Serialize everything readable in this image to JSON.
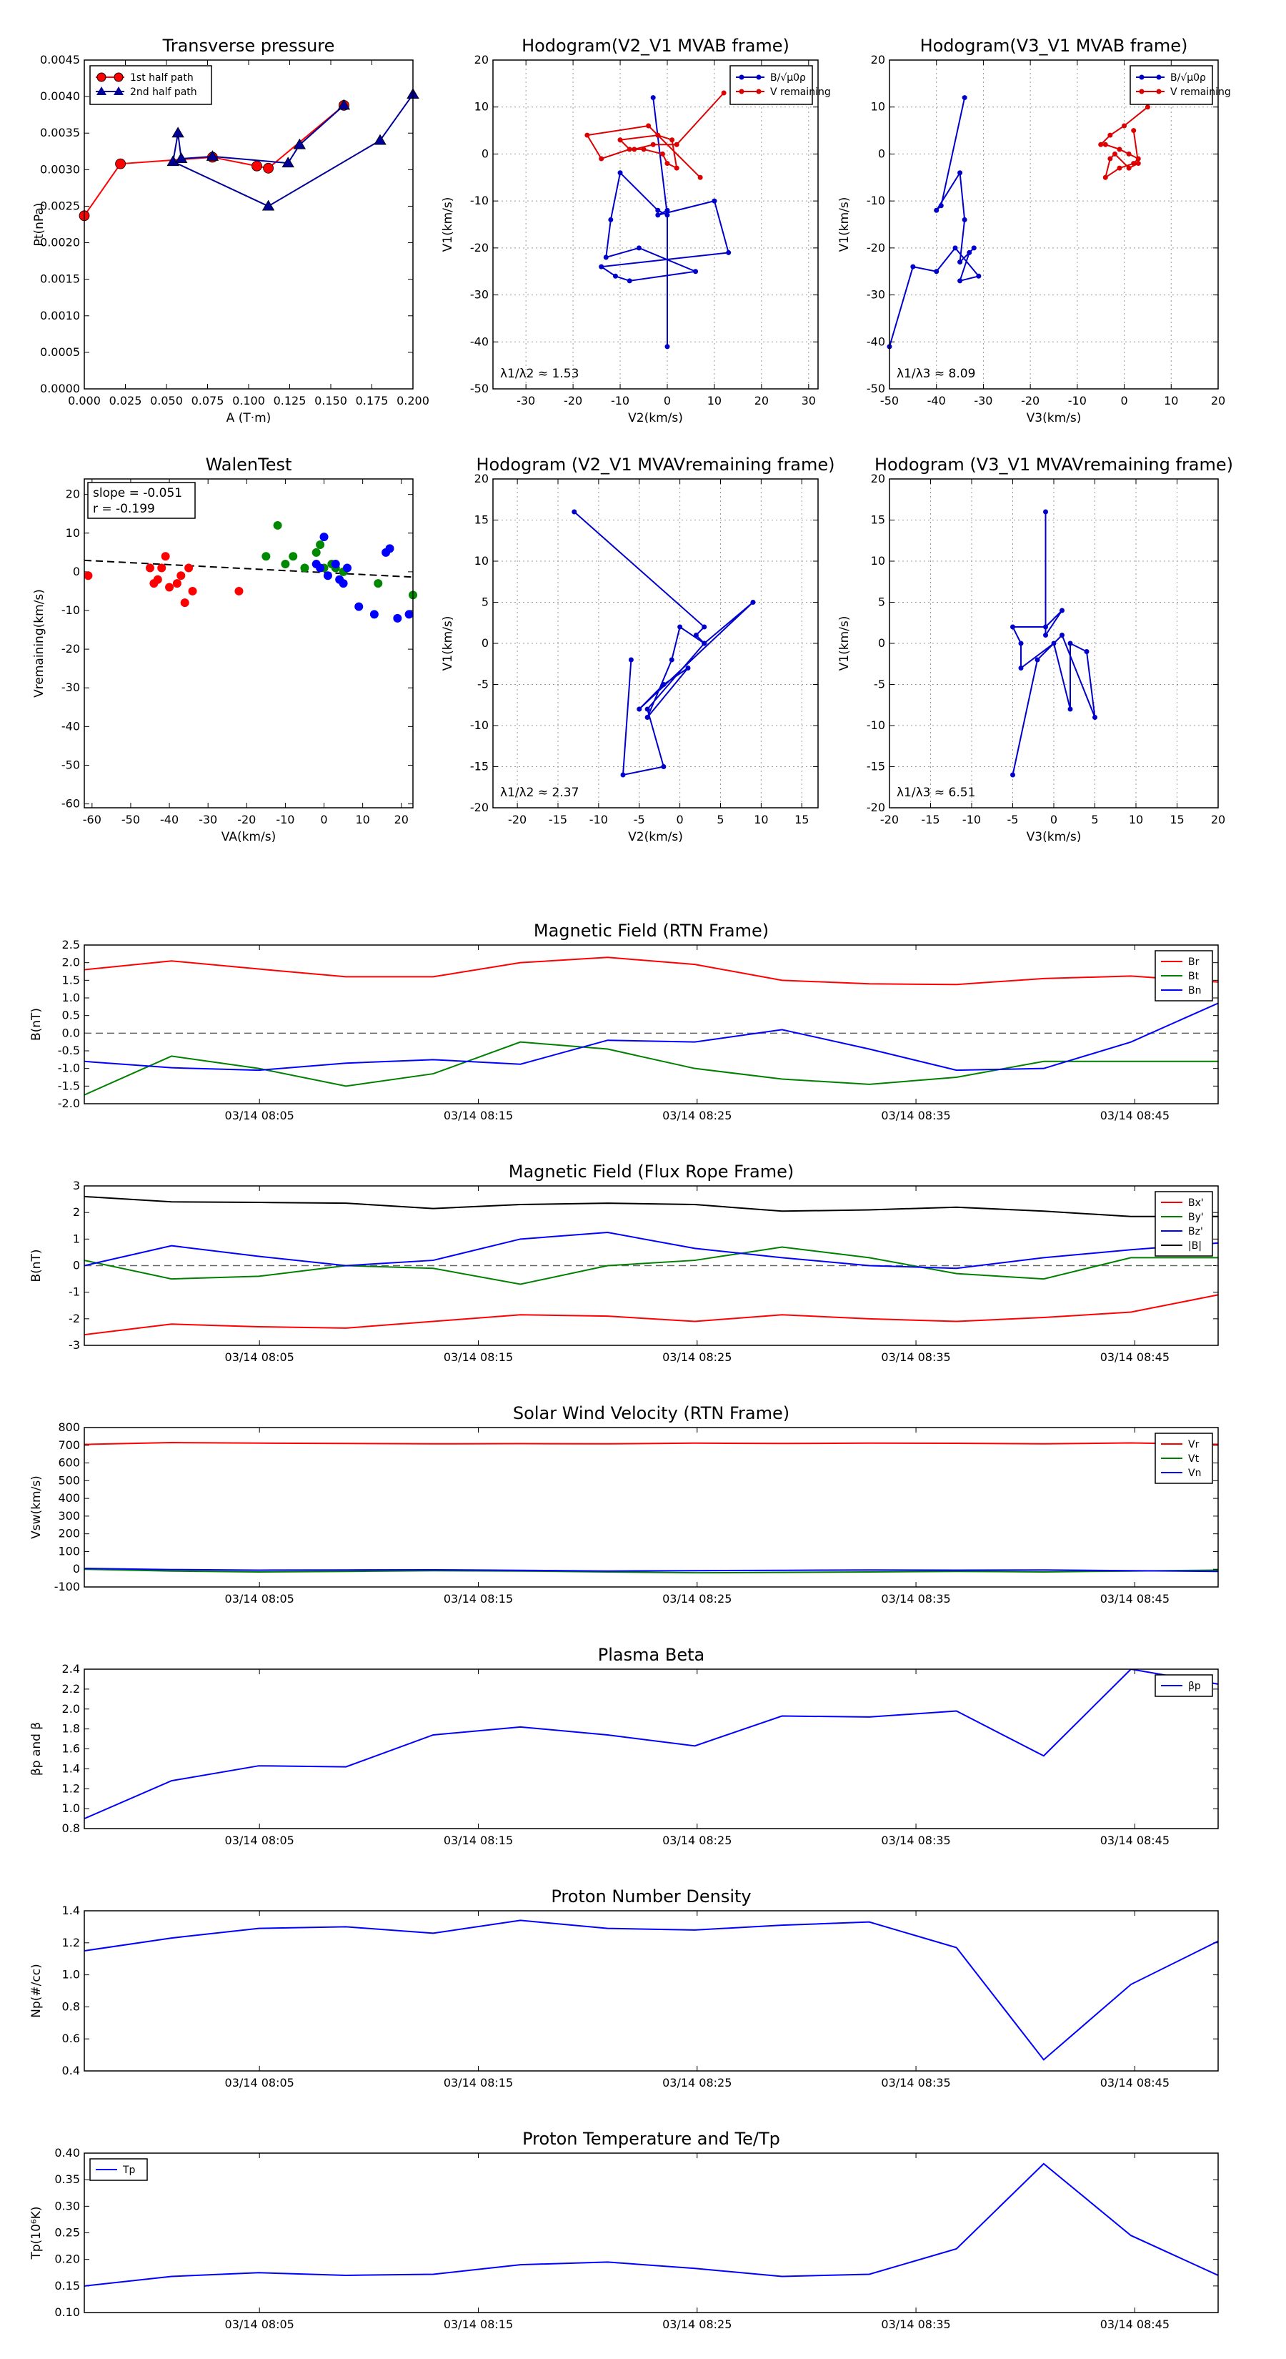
{
  "chart_data": [
    {
      "id": "tp",
      "type": "line",
      "title": "Transverse pressure",
      "xlabel": "A (T·m)",
      "ylabel": "Pt(nPa)",
      "xlim": [
        0,
        0.2
      ],
      "ylim": [
        0,
        0.0045
      ],
      "xticks": [
        "0.000",
        "0.025",
        "0.050",
        "0.075",
        "0.100",
        "0.125",
        "0.150",
        "0.175",
        "0.200"
      ],
      "yticks": [
        "0.0000",
        "0.0005",
        "0.0010",
        "0.0015",
        "0.0020",
        "0.0025",
        "0.0030",
        "0.0035",
        "0.0040",
        "0.0045"
      ],
      "legend": [
        "1st half path",
        "2nd half path"
      ],
      "series": [
        {
          "name": "1st half path",
          "color": "#ff0000",
          "marker": "circle",
          "x": [
            0.0,
            0.022,
            0.078,
            0.105,
            0.112,
            0.158
          ],
          "y": [
            0.00237,
            0.00308,
            0.00317,
            0.00305,
            0.00302,
            0.00388
          ]
        },
        {
          "name": "2nd half path",
          "color": "#000099",
          "marker": "triangle",
          "x": [
            0.2,
            0.18,
            0.112,
            0.054,
            0.057,
            0.059,
            0.078,
            0.124,
            0.131,
            0.158
          ],
          "y": [
            0.00403,
            0.0034,
            0.0025,
            0.00311,
            0.0035,
            0.00315,
            0.00318,
            0.00309,
            0.00334,
            0.00388
          ]
        }
      ]
    },
    {
      "id": "hodo1",
      "type": "line",
      "title": "Hodogram(V2_V1 MVAB frame)",
      "xlabel": "V2(km/s)",
      "ylabel": "V1(km/s)",
      "xlim": [
        -37,
        32
      ],
      "ylim": [
        -50,
        20
      ],
      "xticks": [
        "-30",
        "-20",
        "-10",
        "0",
        "10",
        "20",
        "30"
      ],
      "yticks": [
        "-50",
        "-40",
        "-30",
        "-20",
        "-10",
        "0",
        "10",
        "20"
      ],
      "legend": [
        "B/√μ0ρ",
        "V remaining"
      ],
      "annotation": "λ1/λ2 ≈ 1.53",
      "series": [
        {
          "name": "B",
          "color": "#0000cc",
          "x": [
            -3,
            0,
            -2,
            -10,
            -12,
            -13,
            -6,
            6,
            -8,
            -11,
            -14,
            13,
            10,
            -2,
            0,
            0
          ],
          "y": [
            12,
            -13,
            -12,
            -4,
            -14,
            -22,
            -20,
            -25,
            -27,
            -26,
            -24,
            -21,
            -10,
            -13,
            -12,
            -41
          ]
        },
        {
          "name": "V",
          "color": "#dd0000",
          "x": [
            12,
            2,
            -3,
            -7,
            -5,
            -1,
            0,
            2,
            1,
            -2,
            -10,
            -8,
            -14,
            -17,
            -4,
            7
          ],
          "y": [
            13,
            2,
            2,
            1,
            1,
            0,
            -2,
            -3,
            3,
            4,
            3,
            1,
            -1,
            4,
            6,
            -5
          ]
        }
      ]
    },
    {
      "id": "hodo2",
      "type": "line",
      "title": "Hodogram(V3_V1 MVAB frame)",
      "xlabel": "V3(km/s)",
      "ylabel": "V1(km/s)",
      "xlim": [
        -50,
        20
      ],
      "ylim": [
        -50,
        20
      ],
      "xticks": [
        "-50",
        "-40",
        "-30",
        "-20",
        "-10",
        "0",
        "10",
        "20"
      ],
      "yticks": [
        "-50",
        "-40",
        "-30",
        "-20",
        "-10",
        "0",
        "10",
        "20"
      ],
      "legend": [
        "B/√μ0ρ",
        "V remaining"
      ],
      "annotation": "λ1/λ3 ≈ 8.09",
      "series": [
        {
          "name": "B",
          "color": "#0000cc",
          "x": [
            -34,
            -39,
            -40,
            -35,
            -34,
            -35,
            -32,
            -33,
            -35,
            -31,
            -36,
            -40,
            -45,
            -50
          ],
          "y": [
            12,
            -11,
            -12,
            -4,
            -14,
            -23,
            -20,
            -21,
            -27,
            -26,
            -20,
            -25,
            -24,
            -41
          ]
        },
        {
          "name": "V",
          "color": "#dd0000",
          "x": [
            5,
            0,
            -3,
            -5,
            -4,
            -1,
            1,
            3,
            2,
            -1,
            -4,
            -3,
            -2,
            1,
            3,
            2
          ],
          "y": [
            10,
            6,
            4,
            2,
            2,
            1,
            0,
            -1,
            -2,
            -3,
            -5,
            -1,
            0,
            -3,
            -2,
            5
          ]
        }
      ]
    },
    {
      "id": "walen",
      "type": "scatter",
      "title": "WalenTest",
      "xlabel": "VA(km/s)",
      "ylabel": "Vremaining(km/s)",
      "xlim": [
        -62,
        23
      ],
      "ylim": [
        -61,
        24
      ],
      "xticks": [
        "-60",
        "-50",
        "-40",
        "-30",
        "-20",
        "-10",
        "0",
        "10",
        "20"
      ],
      "yticks": [
        "-60",
        "-50",
        "-40",
        "-30",
        "-20",
        "-10",
        "0",
        "10",
        "20"
      ],
      "box_lines": [
        "slope = -0.051",
        "r = -0.199"
      ],
      "fit": {
        "slope": -0.051,
        "intercept": -0.2
      },
      "series": [
        {
          "name": "red",
          "color": "#ff0000",
          "x": [
            -61,
            -45,
            -44,
            -43,
            -42,
            -41,
            -40,
            -38,
            -37,
            -36,
            -35,
            -34,
            -22
          ],
          "y": [
            -1,
            1,
            -3,
            -2,
            1,
            4,
            -4,
            -3,
            -1,
            -8,
            1,
            -5,
            -5
          ]
        },
        {
          "name": "green",
          "color": "#008800",
          "x": [
            -15,
            -12,
            -10,
            -8,
            -5,
            -2,
            -1,
            0,
            2,
            3,
            5,
            14,
            23
          ],
          "y": [
            4,
            12,
            2,
            4,
            1,
            5,
            7,
            1,
            2,
            1,
            0,
            -3,
            -6
          ]
        },
        {
          "name": "blue",
          "color": "#0000ff",
          "x": [
            -2,
            -1,
            0,
            1,
            3,
            4,
            5,
            6,
            9,
            13,
            16,
            17,
            19,
            22
          ],
          "y": [
            2,
            1,
            9,
            -1,
            2,
            -2,
            -3,
            1,
            -9,
            -11,
            5,
            6,
            -12,
            -11
          ]
        }
      ]
    },
    {
      "id": "hodo3",
      "type": "line",
      "title": "Hodogram (V2_V1 MVAVremaining frame)",
      "xlabel": "V2(km/s)",
      "ylabel": "V1(km/s)",
      "xlim": [
        -23,
        17
      ],
      "ylim": [
        -20,
        20
      ],
      "xticks": [
        "-20",
        "-15",
        "-10",
        "-5",
        "0",
        "5",
        "10",
        "15"
      ],
      "yticks": [
        "-20",
        "-15",
        "-10",
        "-5",
        "0",
        "5",
        "10",
        "15",
        "20"
      ],
      "annotation": "λ1/λ2 ≈ 2.37",
      "series": [
        {
          "name": "V",
          "color": "#0000cc",
          "x": [
            -13,
            3,
            2,
            3,
            9,
            -5,
            -2,
            1,
            -4,
            -1,
            0,
            3,
            -4,
            -2,
            -7,
            -6
          ],
          "y": [
            16,
            2,
            1,
            0,
            5,
            -8,
            -5,
            -3,
            -9,
            -2,
            2,
            0,
            -8,
            -15,
            -16,
            -2
          ]
        }
      ]
    },
    {
      "id": "hodo4",
      "type": "line",
      "title": "Hodogram (V3_V1 MVAVremaining frame)",
      "xlabel": "V3(km/s)",
      "ylabel": "V1(km/s)",
      "xlim": [
        -20,
        20
      ],
      "ylim": [
        -20,
        20
      ],
      "xticks": [
        "-20",
        "-15",
        "-10",
        "-5",
        "0",
        "5",
        "10",
        "15",
        "20"
      ],
      "yticks": [
        "-20",
        "-15",
        "-10",
        "-5",
        "0",
        "5",
        "10",
        "15",
        "20"
      ],
      "annotation": "λ1/λ3 ≈ 6.51",
      "series": [
        {
          "name": "V",
          "color": "#0000cc",
          "x": [
            -1,
            -1,
            1,
            -1,
            -5,
            -4,
            -4,
            0,
            2,
            2,
            4,
            5,
            1,
            -2,
            -5
          ],
          "y": [
            16,
            1,
            4,
            2,
            2,
            0,
            -3,
            0,
            -8,
            0,
            -1,
            -9,
            1,
            -2,
            -16
          ]
        }
      ]
    },
    {
      "id": "mag_rtn",
      "type": "line",
      "title": "Magnetic Field (RTN Frame)",
      "ylabel": "B(nT)",
      "ylim": [
        -2.0,
        2.5
      ],
      "yticks": [
        "2.5",
        "2.0",
        "1.5",
        "1.0",
        "0.5",
        "0.0",
        "-0.5",
        "-1.0",
        "-1.5",
        "-2.0"
      ],
      "xticks": [
        "03/14 08:05",
        "03/14 08:15",
        "03/14 08:25",
        "03/14 08:35",
        "03/14 08:45"
      ],
      "zero_line": true,
      "legend": [
        "Br",
        "Bt",
        "Bn"
      ],
      "series": [
        {
          "name": "Br",
          "color": "#ff0000",
          "values": [
            1.8,
            2.05,
            1.82,
            1.6,
            1.6,
            2.0,
            2.15,
            1.95,
            1.5,
            1.4,
            1.38,
            1.55,
            1.62,
            1.45
          ]
        },
        {
          "name": "Bt",
          "color": "#008000",
          "values": [
            -1.75,
            -0.65,
            -1.0,
            -1.5,
            -1.15,
            -0.25,
            -0.45,
            -1.0,
            -1.3,
            -1.45,
            -1.25,
            -0.8,
            -0.8,
            -0.8
          ]
        },
        {
          "name": "Bn",
          "color": "#0000ff",
          "values": [
            -0.8,
            -0.98,
            -1.05,
            -0.85,
            -0.75,
            -0.88,
            -0.2,
            -0.25,
            0.1,
            -0.45,
            -1.05,
            -1.0,
            -0.25,
            0.85
          ]
        }
      ]
    },
    {
      "id": "mag_fr",
      "type": "line",
      "title": "Magnetic Field (Flux Rope Frame)",
      "ylabel": "B(nT)",
      "ylim": [
        -3,
        3
      ],
      "yticks": [
        "3",
        "2",
        "1",
        "0",
        "-1",
        "-2",
        "-3"
      ],
      "xticks": [
        "03/14 08:05",
        "03/14 08:15",
        "03/14 08:25",
        "03/14 08:35",
        "03/14 08:45"
      ],
      "zero_line": true,
      "legend": [
        "Bx'",
        "By'",
        "Bz'",
        "|B|"
      ],
      "series": [
        {
          "name": "Bx'",
          "color": "#ff0000",
          "values": [
            -2.6,
            -2.2,
            -2.3,
            -2.35,
            -2.1,
            -1.85,
            -1.9,
            -2.1,
            -1.85,
            -2.0,
            -2.1,
            -1.95,
            -1.75,
            -1.1
          ]
        },
        {
          "name": "By'",
          "color": "#008000",
          "values": [
            0.2,
            -0.5,
            -0.4,
            0.0,
            -0.1,
            -0.7,
            0.0,
            0.2,
            0.7,
            0.3,
            -0.3,
            -0.5,
            0.3,
            0.3
          ]
        },
        {
          "name": "Bz'",
          "color": "#0000ff",
          "values": [
            0.0,
            0.75,
            0.35,
            0.0,
            0.2,
            1.0,
            1.25,
            0.65,
            0.3,
            0.0,
            -0.1,
            0.3,
            0.6,
            0.85
          ]
        },
        {
          "name": "|B|",
          "color": "#000000",
          "values": [
            2.6,
            2.4,
            2.38,
            2.35,
            2.15,
            2.3,
            2.35,
            2.3,
            2.05,
            2.1,
            2.2,
            2.05,
            1.85,
            1.85
          ]
        }
      ]
    },
    {
      "id": "sw",
      "type": "line",
      "title": "Solar Wind Velocity (RTN Frame)",
      "ylabel": "Vsw(km/s)",
      "ylim": [
        -100,
        800
      ],
      "yticks": [
        "800",
        "700",
        "600",
        "500",
        "400",
        "300",
        "200",
        "100",
        "0",
        "-100"
      ],
      "xticks": [
        "03/14 08:05",
        "03/14 08:15",
        "03/14 08:25",
        "03/14 08:35",
        "03/14 08:45"
      ],
      "legend": [
        "Vr",
        "Vt",
        "Vn"
      ],
      "series": [
        {
          "name": "Vr",
          "color": "#ff0000",
          "values": [
            705,
            715,
            712,
            710,
            708,
            709,
            708,
            712,
            710,
            712,
            711,
            708,
            713,
            705
          ]
        },
        {
          "name": "Vt",
          "color": "#008000",
          "values": [
            0,
            -10,
            -15,
            -12,
            -8,
            -10,
            -15,
            -20,
            -18,
            -15,
            -12,
            -15,
            -10,
            -5
          ]
        },
        {
          "name": "Vn",
          "color": "#0000ff",
          "values": [
            5,
            -2,
            -5,
            -4,
            -3,
            -6,
            -10,
            -8,
            -6,
            -4,
            -5,
            -4,
            -8,
            -12
          ]
        }
      ]
    },
    {
      "id": "beta",
      "type": "line",
      "title": "Plasma Beta",
      "ylabel": "βp and β",
      "ylim": [
        0.8,
        2.4
      ],
      "yticks": [
        "2.4",
        "2.2",
        "2.0",
        "1.8",
        "1.6",
        "1.4",
        "1.2",
        "1.0",
        "0.8"
      ],
      "xticks": [
        "03/14 08:05",
        "03/14 08:15",
        "03/14 08:25",
        "03/14 08:35",
        "03/14 08:45"
      ],
      "legend": [
        "βp"
      ],
      "series": [
        {
          "name": "βp",
          "color": "#0000ff",
          "values": [
            0.9,
            1.28,
            1.43,
            1.42,
            1.74,
            1.82,
            1.74,
            1.63,
            1.93,
            1.92,
            1.98,
            1.53,
            2.4,
            2.25
          ]
        }
      ]
    },
    {
      "id": "np",
      "type": "line",
      "title": "Proton Number Density",
      "ylabel": "Np(#/cc)",
      "ylim": [
        0.4,
        1.4
      ],
      "yticks": [
        "1.4",
        "1.2",
        "1.0",
        "0.8",
        "0.6",
        "0.4"
      ],
      "xticks": [
        "03/14 08:05",
        "03/14 08:15",
        "03/14 08:25",
        "03/14 08:35",
        "03/14 08:45"
      ],
      "series": [
        {
          "name": "Np",
          "color": "#0000ff",
          "values": [
            1.15,
            1.23,
            1.29,
            1.3,
            1.26,
            1.34,
            1.29,
            1.28,
            1.31,
            1.33,
            1.17,
            0.47,
            0.94,
            1.21
          ]
        }
      ]
    },
    {
      "id": "tp_temp",
      "type": "line",
      "title": "Proton Temperature and Te/Tp",
      "ylabel": "Tp(10⁶K)",
      "ylim": [
        0.1,
        0.4
      ],
      "yticks": [
        "0.40",
        "0.35",
        "0.30",
        "0.25",
        "0.20",
        "0.15",
        "0.10"
      ],
      "xticks": [
        "03/14 08:05",
        "03/14 08:15",
        "03/14 08:25",
        "03/14 08:35",
        "03/14 08:45"
      ],
      "legend": [
        "Tp"
      ],
      "series": [
        {
          "name": "Tp",
          "color": "#0000ff",
          "values": [
            0.15,
            0.168,
            0.175,
            0.17,
            0.172,
            0.19,
            0.195,
            0.183,
            0.168,
            0.172,
            0.22,
            0.38,
            0.245,
            0.17
          ]
        }
      ]
    }
  ]
}
